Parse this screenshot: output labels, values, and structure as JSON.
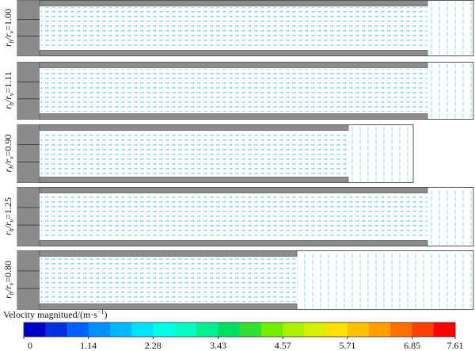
{
  "panels": [
    {
      "sym": "r",
      "sub1": "h",
      "mid": "/r",
      "sub2": "v",
      "value": "=1.00"
    },
    {
      "sym": "r",
      "sub1": "h",
      "mid": "/r",
      "sub2": "v",
      "value": "=1.11"
    },
    {
      "sym": "r",
      "sub1": "h",
      "mid": "/r",
      "sub2": "v",
      "value": "=0.90"
    },
    {
      "sym": "r",
      "sub1": "h",
      "mid": "/r",
      "sub2": "v",
      "value": "=1.25"
    },
    {
      "sym": "r",
      "sub1": "h",
      "mid": "/r",
      "sub2": "v",
      "value": "=0.80"
    }
  ],
  "colorbar": {
    "title": "Velocity magnitued/(m·s",
    "title_sup": "−1",
    "title_end": ")",
    "range": [
      0,
      7.61
    ],
    "ticks": [
      0,
      1.14,
      2.28,
      3.43,
      4.57,
      5.71,
      6.85,
      7.61
    ],
    "colors": [
      "#0000c8",
      "#0030e0",
      "#0060ff",
      "#0090ff",
      "#00b8ff",
      "#00e0ff",
      "#00ffe8",
      "#00ffc0",
      "#00f090",
      "#00e060",
      "#30e030",
      "#70f000",
      "#a8f000",
      "#d8f000",
      "#ffe000",
      "#ffc000",
      "#ffa000",
      "#ff7000",
      "#ff4000",
      "#ff0000"
    ]
  }
}
